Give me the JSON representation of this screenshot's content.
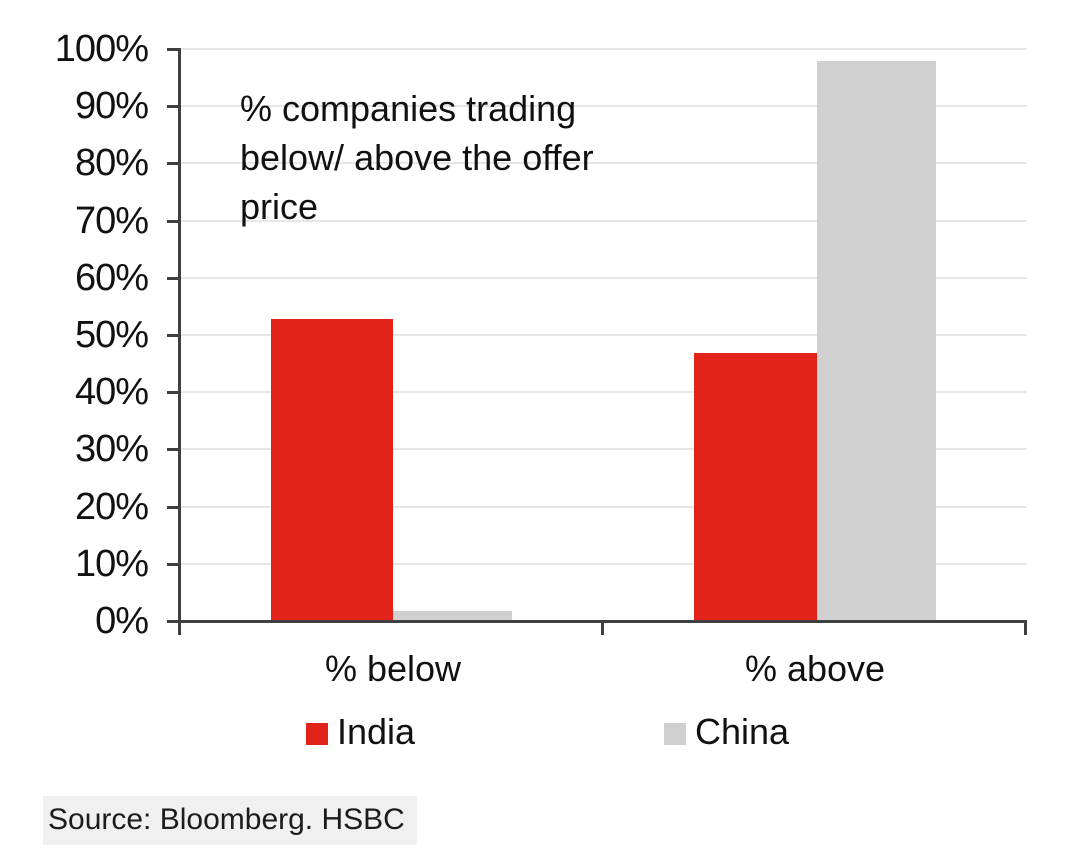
{
  "chart_data": {
    "type": "bar",
    "annotation": "% companies trading\nbelow/ above the offer\nprice",
    "categories": [
      "% below",
      "% above"
    ],
    "series": [
      {
        "name": "India",
        "color": "#e2231a",
        "values": [
          53,
          47
        ]
      },
      {
        "name": "China",
        "color": "#d0d0d0",
        "values": [
          2,
          98
        ]
      }
    ],
    "ylim": [
      0,
      100
    ],
    "y_tick_labels": [
      "0%",
      "10%",
      "20%",
      "30%",
      "40%",
      "50%",
      "60%",
      "70%",
      "80%",
      "90%",
      "100%"
    ],
    "grid": true,
    "legend_position": "bottom"
  },
  "colors": {
    "axis": "#404040",
    "gridline": "#e6e6e6",
    "text": "#111111",
    "source_highlight": "#f0f0f0"
  },
  "source": {
    "text": "Source: Bloomberg. HSBC"
  }
}
